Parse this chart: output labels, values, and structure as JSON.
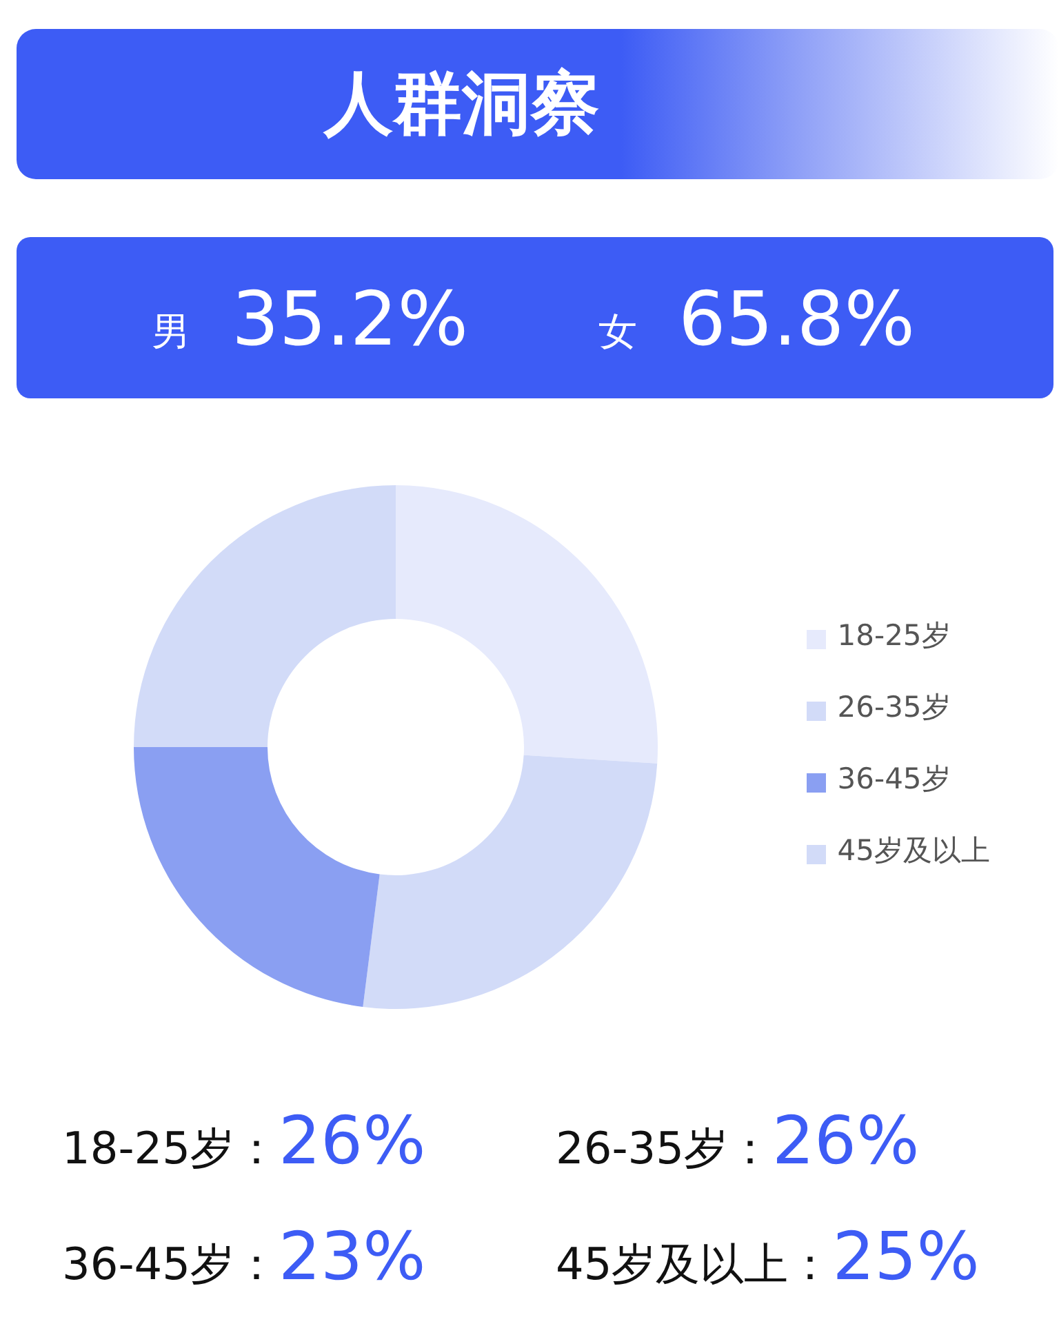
{
  "chart_data": {
    "type": "donut",
    "title": "人群洞察",
    "annotations": [
      "男",
      "35.2%",
      "女",
      "65.8%",
      "18-25岁：",
      "26%",
      "26-35岁：",
      "26%",
      "36-45岁：",
      "23%",
      "45岁及以上：",
      "25%"
    ],
    "categories": [
      "18-25岁",
      "26-35岁",
      "36-45岁",
      "45岁及以上"
    ],
    "values": [
      26,
      26,
      23,
      25
    ],
    "colors": [
      "#e6eafc",
      "#d2dbf8",
      "#8a9ff2",
      "#d2dbf8"
    ],
    "legend": "right"
  }
}
